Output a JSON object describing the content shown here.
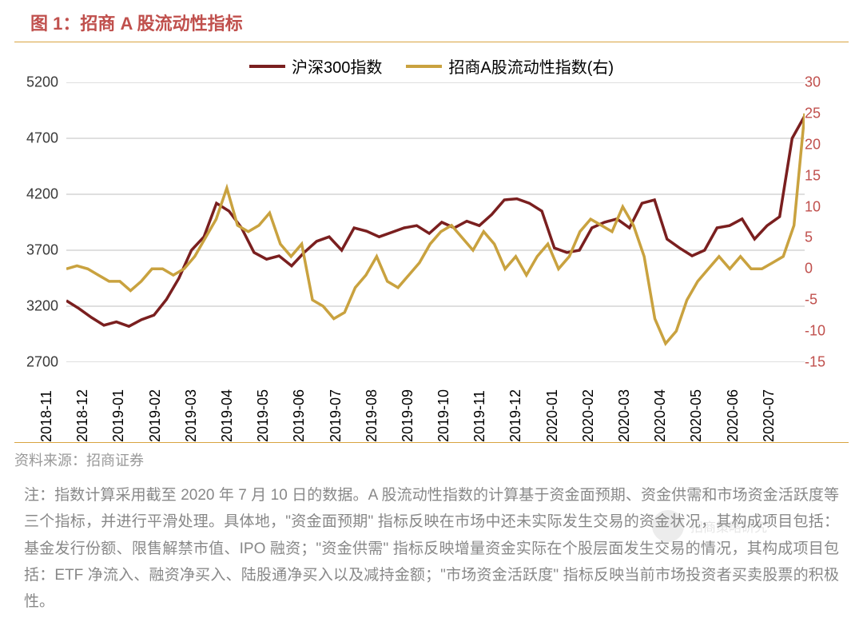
{
  "title": "图 1：招商 A 股流动性指标",
  "title_color": "#c0504d",
  "title_underline_color": "#d9a441",
  "source": "资料来源：招商证券",
  "source_color": "#999999",
  "source_border_color": "#d9a441",
  "note": "注：指数计算采用截至 2020 年 7 月 10 日的数据。A 股流动性指数的计算基于资金面预期、资金供需和市场资金活跃度等三个指标，并进行平滑处理。具体地，\"资金面预期\" 指标反映在市场中还未实际发生交易的资金状况，其构成项目包括：基金发行份额、限售解禁市值、IPO 融资；\"资金供需\" 指标反映增量资金实际在个股层面发生交易的情况，其构成项目包括：ETF 净流入、融资净买入、陆股通净买入以及减持金额；\"市场资金活跃度\" 指标反映当前市场投资者买卖股票的积极性。",
  "note_color": "#888888",
  "watermark_text": "招商策略研究",
  "chart": {
    "type": "line-dual-axis",
    "background_color": "#ffffff",
    "grid_color": "#bfbfbf",
    "axis_color": "#000000",
    "y_left": {
      "min": 2700,
      "max": 5200,
      "step": 500,
      "ticks": [
        5200,
        4700,
        4200,
        3700,
        3200,
        2700
      ],
      "color": "#3a3a3a",
      "fontsize": 18
    },
    "y_right": {
      "min": -15,
      "max": 30,
      "step": 5,
      "ticks": [
        30,
        25,
        20,
        15,
        10,
        5,
        0,
        -5,
        -10,
        -15
      ],
      "color": "#c0504d",
      "fontsize": 18
    },
    "x": {
      "labels": [
        "2018-11",
        "2018-12",
        "2019-01",
        "2019-02",
        "2019-03",
        "2019-04",
        "2019-05",
        "2019-06",
        "2019-07",
        "2019-08",
        "2019-09",
        "2019-10",
        "2019-11",
        "2019-12",
        "2020-01",
        "2020-02",
        "2020-03",
        "2020-04",
        "2020-05",
        "2020-06",
        "2020-07"
      ],
      "fontsize": 18,
      "rotation": -90
    },
    "legend": {
      "items": [
        {
          "label": "沪深300指数",
          "color": "#7a1f1f"
        },
        {
          "label": "招商A股流动性指数(右)",
          "color": "#c9a23f"
        }
      ],
      "fontsize": 20
    },
    "series": [
      {
        "name": "沪深300指数",
        "axis": "left",
        "color": "#7a1f1f",
        "line_width": 3.5,
        "values": [
          3250,
          3180,
          3100,
          3030,
          3060,
          3020,
          3080,
          3120,
          3260,
          3450,
          3700,
          3820,
          4120,
          4050,
          3900,
          3680,
          3620,
          3650,
          3560,
          3680,
          3780,
          3820,
          3700,
          3900,
          3870,
          3820,
          3860,
          3900,
          3920,
          3850,
          3950,
          3900,
          3960,
          3920,
          4020,
          4150,
          4160,
          4120,
          4050,
          3720,
          3680,
          3700,
          3900,
          3950,
          3980,
          3900,
          4120,
          4150,
          3800,
          3720,
          3650,
          3700,
          3900,
          3920,
          3980,
          3800,
          3920,
          4000,
          4700,
          4900
        ]
      },
      {
        "name": "招商A股流动性指数",
        "axis": "right",
        "color": "#c9a23f",
        "line_width": 3.5,
        "values": [
          0,
          0.5,
          0,
          -1,
          -2,
          -2,
          -3.5,
          -2,
          0,
          0,
          -1,
          0,
          2,
          5,
          8,
          13,
          7,
          6,
          7,
          9,
          4,
          2,
          4,
          -5,
          -6,
          -8,
          -7,
          -3,
          -1,
          2,
          -2,
          -3,
          -1,
          1,
          4,
          6,
          7,
          5,
          3,
          6,
          4,
          0,
          2,
          -1,
          2,
          4,
          0,
          2,
          6,
          8,
          7,
          6,
          10,
          7,
          2,
          -8,
          -12,
          -10,
          -5,
          -2,
          0,
          2,
          0,
          2,
          0,
          0,
          1,
          2,
          7,
          25
        ]
      }
    ]
  }
}
